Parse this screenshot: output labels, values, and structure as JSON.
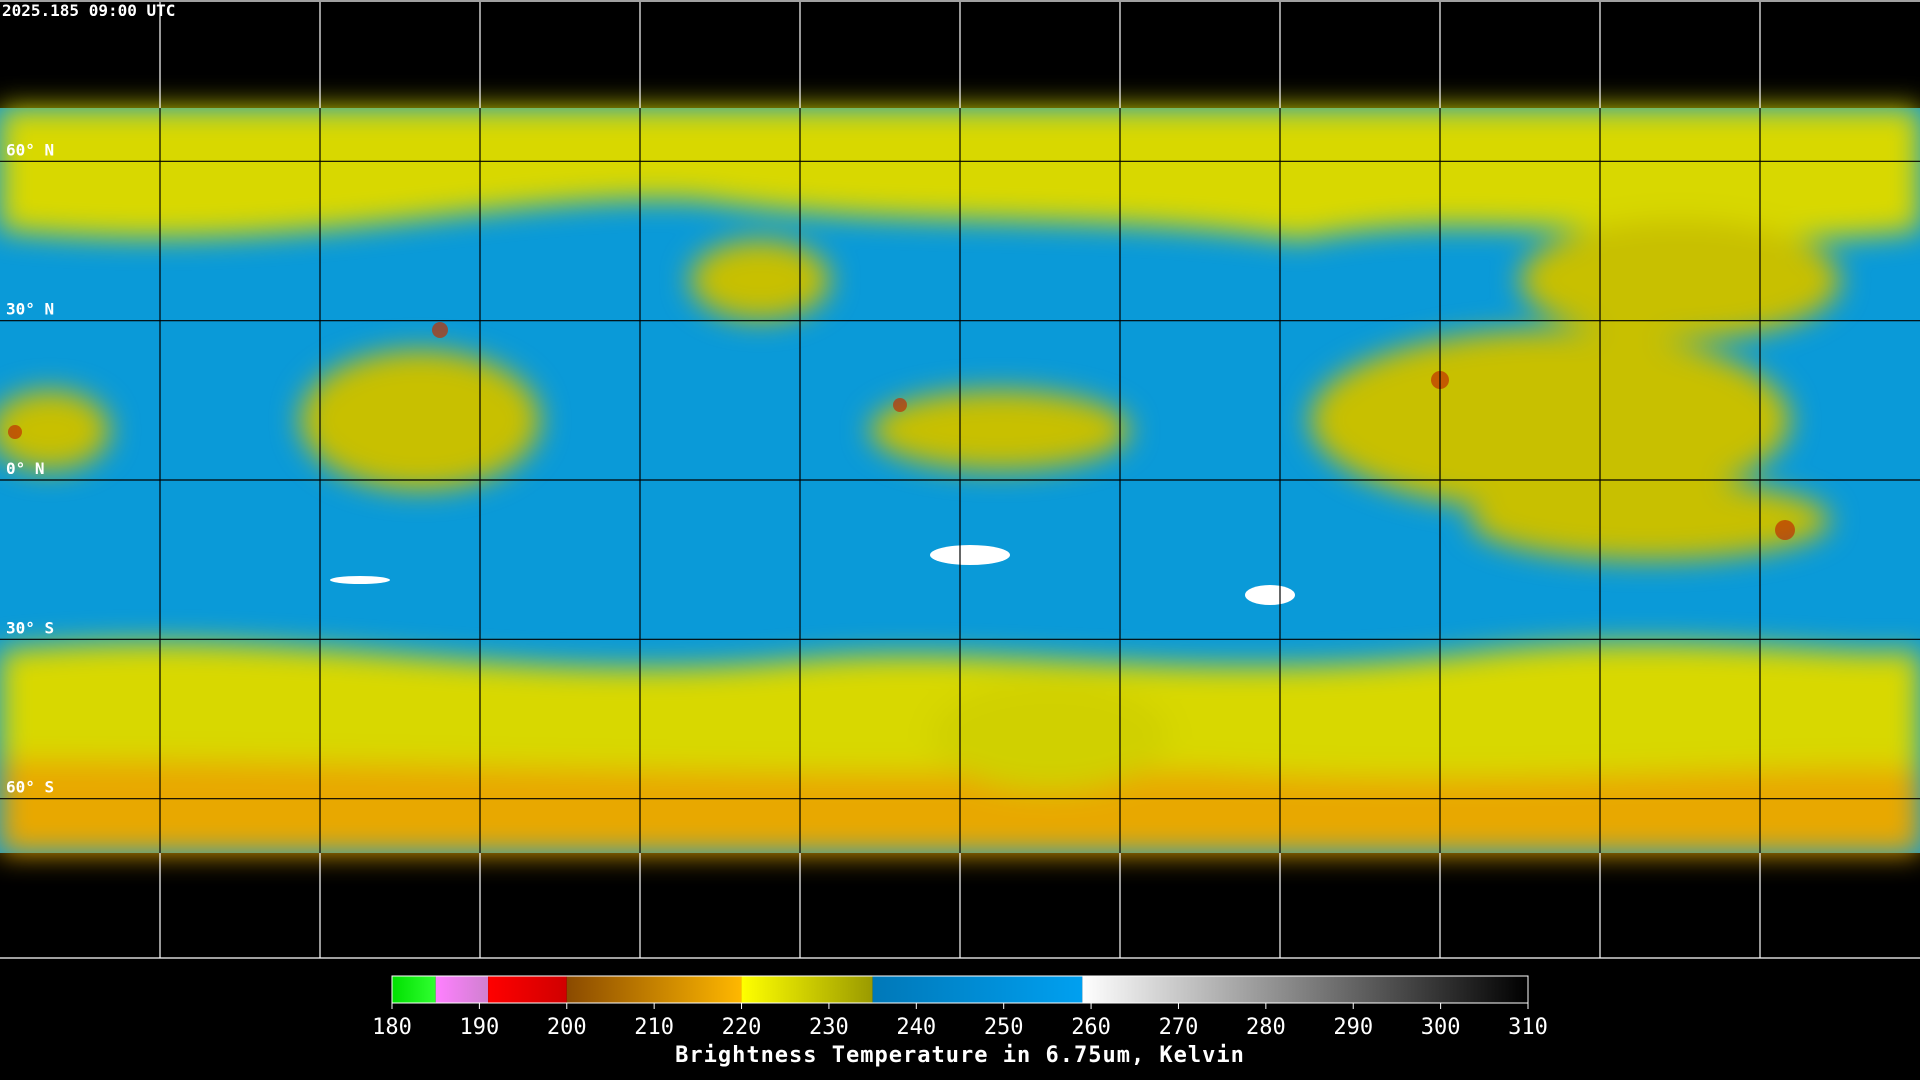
{
  "header": {
    "timestamp": "2025.185 09:00 UTC"
  },
  "map": {
    "lat_labels": [
      "60° N",
      "30° N",
      "0° N",
      "30° S",
      "60° S"
    ]
  },
  "colorbar": {
    "title": "Brightness Temperature in 6.75um, Kelvin",
    "range": [
      180,
      310
    ],
    "ticks": [
      180,
      190,
      200,
      210,
      220,
      230,
      240,
      250,
      260,
      270,
      280,
      290,
      300,
      310
    ],
    "segments": [
      {
        "from": 180,
        "to": 185,
        "colors": [
          "#00e000",
          "#30ff30"
        ]
      },
      {
        "from": 185,
        "to": 191,
        "colors": [
          "#ff80ff",
          "#d080d0"
        ]
      },
      {
        "from": 191,
        "to": 200,
        "colors": [
          "#ff0000",
          "#d00000"
        ]
      },
      {
        "from": 200,
        "to": 220,
        "colors": [
          "#8a4a00",
          "#ffb800"
        ]
      },
      {
        "from": 220,
        "to": 235,
        "colors": [
          "#ffff00",
          "#9a9a00"
        ]
      },
      {
        "from": 235,
        "to": 259,
        "colors": [
          "#0078b8",
          "#00a0f0"
        ]
      },
      {
        "from": 259,
        "to": 310,
        "colors": [
          "#ffffff",
          "#000000"
        ]
      }
    ]
  }
}
